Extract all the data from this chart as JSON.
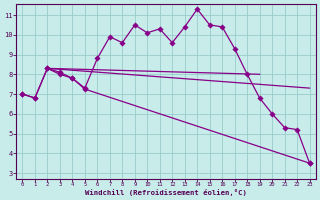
{
  "xlabel": "Windchill (Refroidissement éolien,°C)",
  "background_color": "#c8ecea",
  "line_color": "#880088",
  "grid_color": "#99cccc",
  "xlim_min": -0.5,
  "xlim_max": 23.5,
  "ylim_min": 2.7,
  "ylim_max": 11.55,
  "yticks": [
    3,
    4,
    5,
    6,
    7,
    8,
    9,
    10,
    11
  ],
  "xticks": [
    0,
    1,
    2,
    3,
    4,
    5,
    6,
    7,
    8,
    9,
    10,
    11,
    12,
    13,
    14,
    15,
    16,
    17,
    18,
    19,
    20,
    21,
    22,
    23
  ],
  "line1_x": [
    0,
    1,
    2,
    3,
    4,
    5,
    6,
    7,
    8,
    9,
    10,
    11,
    12,
    13,
    14,
    15,
    16,
    17,
    18,
    19,
    20,
    21,
    22,
    23
  ],
  "line1_y": [
    7.0,
    6.8,
    8.3,
    8.0,
    7.8,
    7.3,
    8.8,
    9.9,
    9.6,
    10.5,
    10.1,
    10.3,
    9.6,
    10.4,
    11.3,
    10.5,
    10.4,
    9.3,
    8.0,
    6.8,
    6.0,
    5.3,
    5.2,
    3.5
  ],
  "line2_x": [
    0,
    1,
    2,
    3,
    4,
    5,
    23
  ],
  "line2_y": [
    7.0,
    6.8,
    8.3,
    8.1,
    7.8,
    7.25,
    3.5
  ],
  "line3_x": [
    2,
    19
  ],
  "line3_y": [
    8.3,
    8.0
  ],
  "line4_x": [
    2,
    23
  ],
  "line4_y": [
    8.3,
    7.3
  ],
  "spine_color": "#550055",
  "tick_color": "#550055",
  "label_color": "#550055"
}
